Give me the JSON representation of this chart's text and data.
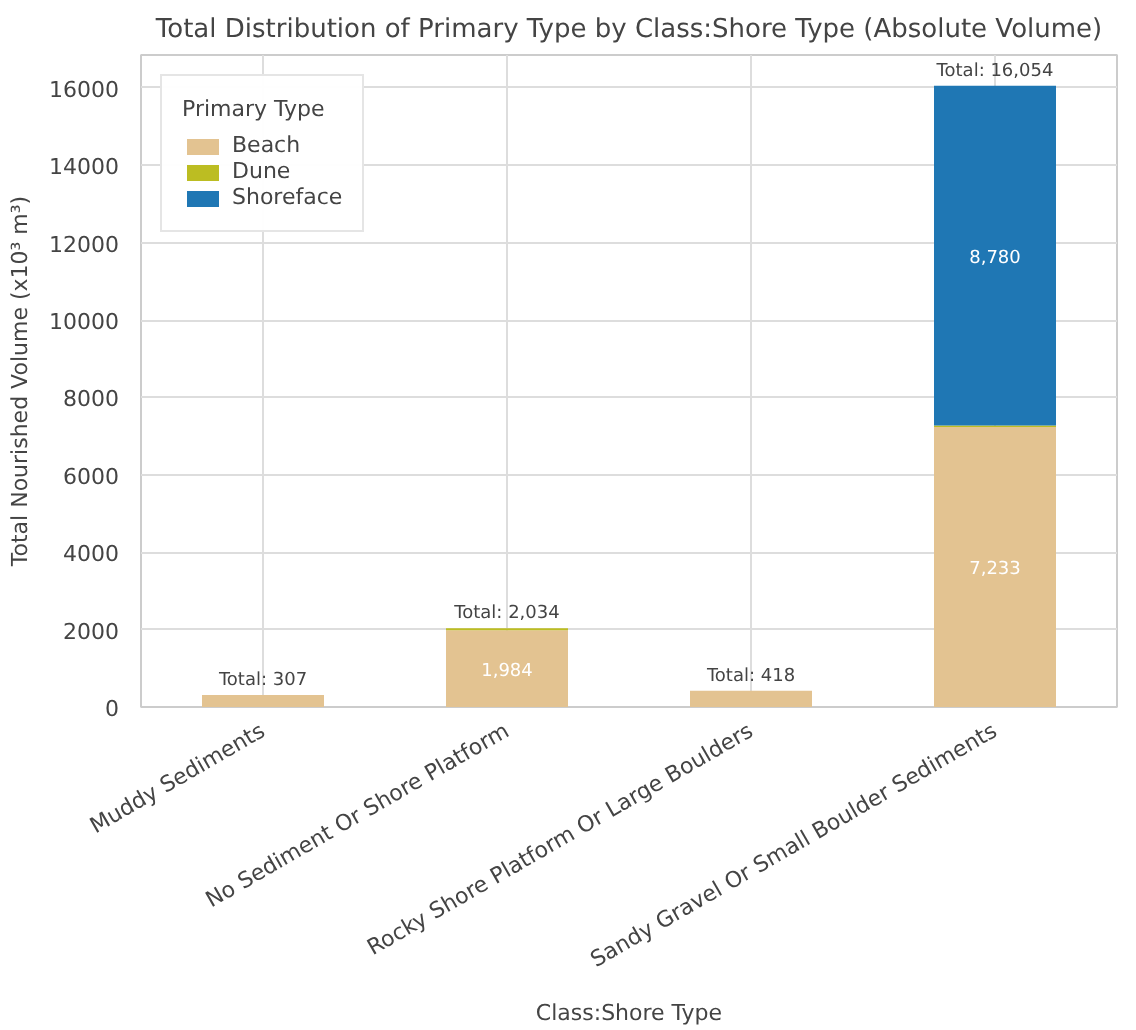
{
  "chart_data": {
    "type": "bar",
    "stacked": true,
    "title": "Total Distribution of Primary Type by Class:Shore Type (Absolute Volume)",
    "xlabel": "Class:Shore Type",
    "ylabel": "Total Nourished Volume (x10³ m³)",
    "legend_title": "Primary Type",
    "categories": [
      "Muddy Sediments",
      "No Sediment Or Shore Platform",
      "Rocky Shore Platform Or Large Boulders",
      "Sandy Gravel Or Small Boulder Sediments"
    ],
    "series": [
      {
        "name": "Beach",
        "color": "#e3c391",
        "values": [
          307,
          1984,
          418,
          7233
        ],
        "value_labels": [
          null,
          "1,984",
          null,
          "7,233"
        ]
      },
      {
        "name": "Dune",
        "color": "#bcbd22",
        "values": [
          null,
          50,
          null,
          41
        ],
        "value_labels": [
          null,
          null,
          null,
          null
        ]
      },
      {
        "name": "Shoreface",
        "color": "#1f77b4",
        "values": [
          null,
          null,
          null,
          8780
        ],
        "value_labels": [
          null,
          null,
          null,
          "8,780"
        ]
      }
    ],
    "totals": [
      "Total: 307",
      "Total: 2,034",
      "Total: 418",
      "Total: 16,054"
    ],
    "ylim": [
      0,
      16850
    ],
    "yticks": [
      0,
      2000,
      4000,
      6000,
      8000,
      10000,
      12000,
      14000,
      16000
    ],
    "grid": true,
    "legend": "top left"
  }
}
